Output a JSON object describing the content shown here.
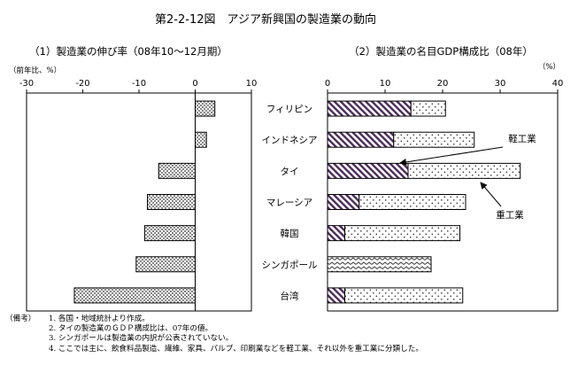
{
  "title": "第2-2-12図　アジア新興国の製造業の動向",
  "chart_data": [
    {
      "type": "bar",
      "orientation": "horizontal",
      "title": "（1）製造業の伸び率（08年10～12月期）",
      "unit_label": "（前年比、%）",
      "categories": [
        "フィリピン",
        "インドネシア",
        "タイ",
        "マレーシア",
        "韓国",
        "シンガポール",
        "台湾"
      ],
      "values": [
        3.5,
        2.0,
        -6.5,
        -8.5,
        -9.0,
        -10.5,
        -21.5
      ],
      "xlim": [
        -30,
        10
      ],
      "xticks": [
        "-30",
        "-20",
        "-10",
        "0",
        "10"
      ],
      "grid": false,
      "pattern": "checkered"
    },
    {
      "type": "bar",
      "orientation": "horizontal",
      "stacked": true,
      "title": "（2）製造業の名目GDP構成比（08年）",
      "unit_label": "（%）",
      "categories": [
        "フィリピン",
        "インドネシア",
        "タイ",
        "マレーシア",
        "韓国",
        "シンガポール",
        "台湾"
      ],
      "series": [
        {
          "name": "軽工業",
          "values": [
            14.5,
            11.5,
            14.0,
            5.5,
            3.0,
            null,
            3.0
          ],
          "pattern": "diagonal-hatch"
        },
        {
          "name": "重工業",
          "values": [
            6.0,
            14.0,
            19.5,
            18.5,
            20.0,
            null,
            20.5
          ],
          "pattern": "dotted"
        },
        {
          "name": "",
          "values": [
            null,
            null,
            null,
            null,
            null,
            18.0,
            null
          ],
          "pattern": "zigzag"
        }
      ],
      "xlim": [
        0,
        40
      ],
      "xticks": [
        "0",
        "10",
        "20",
        "30",
        "40"
      ],
      "grid": false,
      "annotations": [
        "軽工業",
        "重工業"
      ]
    }
  ],
  "notes": {
    "lead": "（備考）",
    "items": [
      "1.  各国・地域統計より作成。",
      "2.  タイの製造業のＧＤＰ構成比は、07年の値。",
      "3.  シンガポールは製造業の内訳が公表されていない。",
      "4.  ここでは主に、飲食料品製造、繊維、家具、パルプ、印刷業などを軽工業、それ以外を重工業に分類した。"
    ]
  }
}
